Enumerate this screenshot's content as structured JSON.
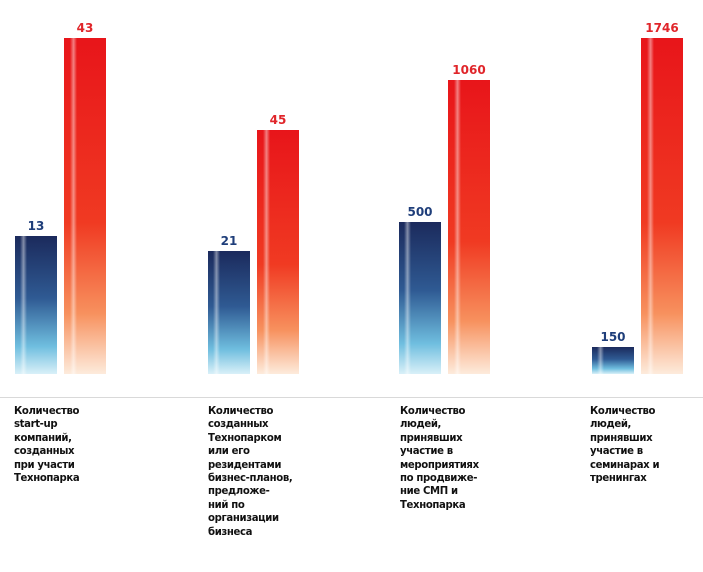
{
  "chart_data": {
    "type": "bar",
    "title": "",
    "xlabel": "",
    "ylabel": "",
    "grid": false,
    "legend": "none",
    "categories": [
      "Количество\nstart-up\nкомпаний,\nсозданных\nпри участи\nТехнопарка",
      "Количество\nсозданных\nТехнопарком\nили его\nрезидентами\nбизнес-планов,\nпредложе-\nний по\nорганизации\nбизнеса",
      "Количество\nлюдей,\nпринявших\nучастие  в\nмероприятиях\nпо продвиже-\nние СМП и\nТехнопарка",
      "Количество\nлюдей,\nпринявших\nучастие  в\nсеминарах и\nтренингах"
    ],
    "series": [
      {
        "values": [
          13,
          21,
          500,
          150
        ],
        "value_labels": [
          "13",
          "21",
          "500",
          "150"
        ],
        "color_top": "#1b2a5c",
        "color_bottom": "#bfe6f4",
        "label_color": "#1f3e7a"
      },
      {
        "values": [
          43,
          45,
          1060,
          1746
        ],
        "value_labels": [
          "43",
          "45",
          "1060",
          "1746"
        ],
        "color_top": "#e8151a",
        "color_bottom": "#fde4cf",
        "label_color": "#e0252a"
      }
    ]
  }
}
